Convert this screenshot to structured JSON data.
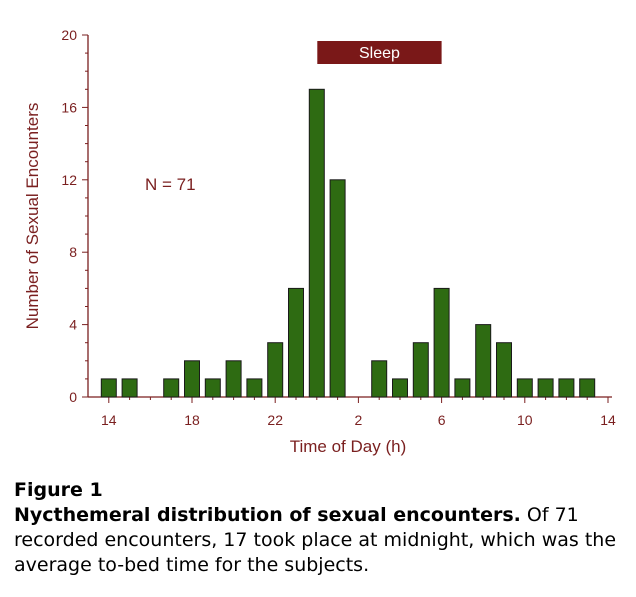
{
  "chart_data": {
    "type": "bar",
    "ylabel": "Number of Sexual Encounters",
    "xlabel": "Time of Day (h)",
    "ylim": [
      0,
      20
    ],
    "yticks": [
      0,
      4,
      8,
      12,
      16,
      20
    ],
    "y_minor_step": 1,
    "x_tick_labels": [
      "14",
      "18",
      "22",
      "2",
      "6",
      "10",
      "14"
    ],
    "x": [
      14,
      15,
      16,
      17,
      18,
      19,
      20,
      21,
      22,
      23,
      24,
      25,
      26,
      27,
      28,
      29,
      30,
      31,
      32,
      33,
      34,
      35,
      36,
      37
    ],
    "values": [
      1,
      1,
      0,
      1,
      2,
      1,
      2,
      1,
      3,
      6,
      17,
      12,
      0,
      2,
      1,
      3,
      6,
      1,
      4,
      3,
      1,
      1,
      1,
      1
    ],
    "bar_color": "#2e6b12",
    "axis_color": "#7a1f1f",
    "annotations": [
      {
        "text": "N = 71"
      },
      {
        "text": "Sleep",
        "span": [
          24,
          30
        ],
        "color": "#7a1818"
      }
    ]
  },
  "caption": {
    "label": "Figure 1",
    "title": "Nycthemeral distribution of sexual encounters.",
    "text": " Of 71 recorded encounters, 17 took place at midnight, which was the average to-bed time for the subjects."
  }
}
